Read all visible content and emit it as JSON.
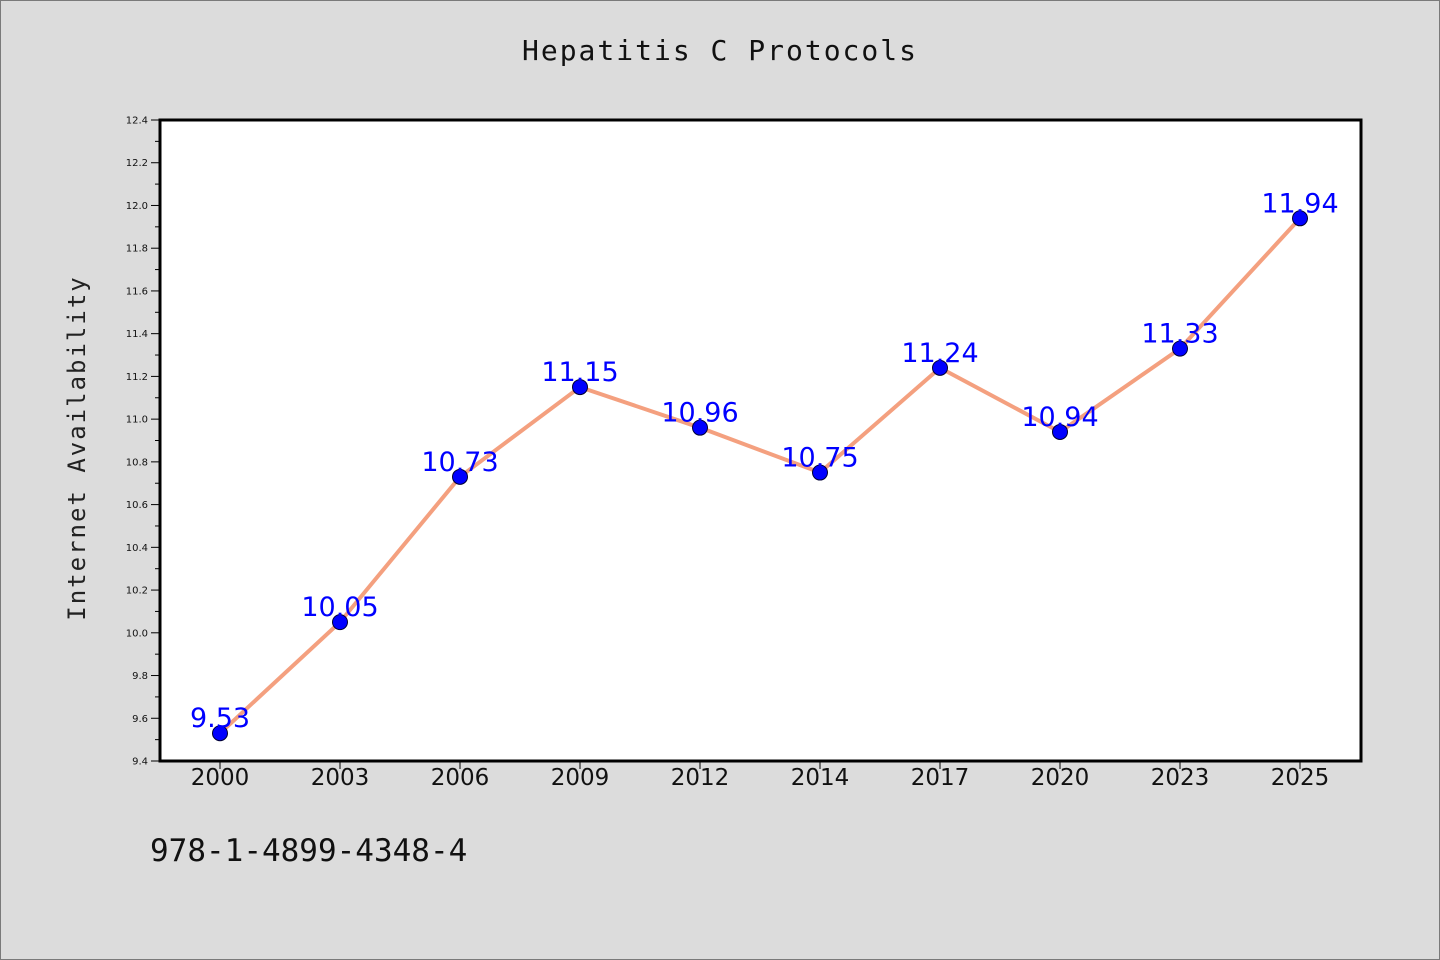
{
  "title": "Hepatitis C Protocols",
  "footer": "978-1-4899-4348-4",
  "chart_data": {
    "type": "line",
    "title": "Hepatitis C Protocols",
    "xlabel": "",
    "ylabel": "Internet Availability",
    "categories": [
      "2000",
      "2003",
      "2006",
      "2009",
      "2012",
      "2014",
      "2017",
      "2020",
      "2023",
      "2025"
    ],
    "values": [
      9.53,
      10.05,
      10.73,
      11.15,
      10.96,
      10.75,
      11.24,
      10.94,
      11.33,
      11.94
    ],
    "data_labels": [
      "9.53",
      "10.05",
      "10.73",
      "11.15",
      "10.96",
      "10.75",
      "11.24",
      "10.94",
      "11.33",
      "11.94"
    ],
    "ylim": [
      9.4,
      12.4
    ],
    "yticks": [
      "9.4",
      "9.6",
      "9.8",
      "10.0",
      "10.2",
      "10.4",
      "10.6",
      "10.8",
      "11.0",
      "11.2",
      "11.4",
      "11.6",
      "11.8",
      "12.0",
      "12.2",
      "12.4"
    ],
    "grid": false,
    "legend": "none",
    "colors": {
      "line": "#f4a07f",
      "marker": "#0000ff",
      "label": "#0000ff",
      "background": "#dcdcdc",
      "plot_background": "#ffffff"
    }
  }
}
